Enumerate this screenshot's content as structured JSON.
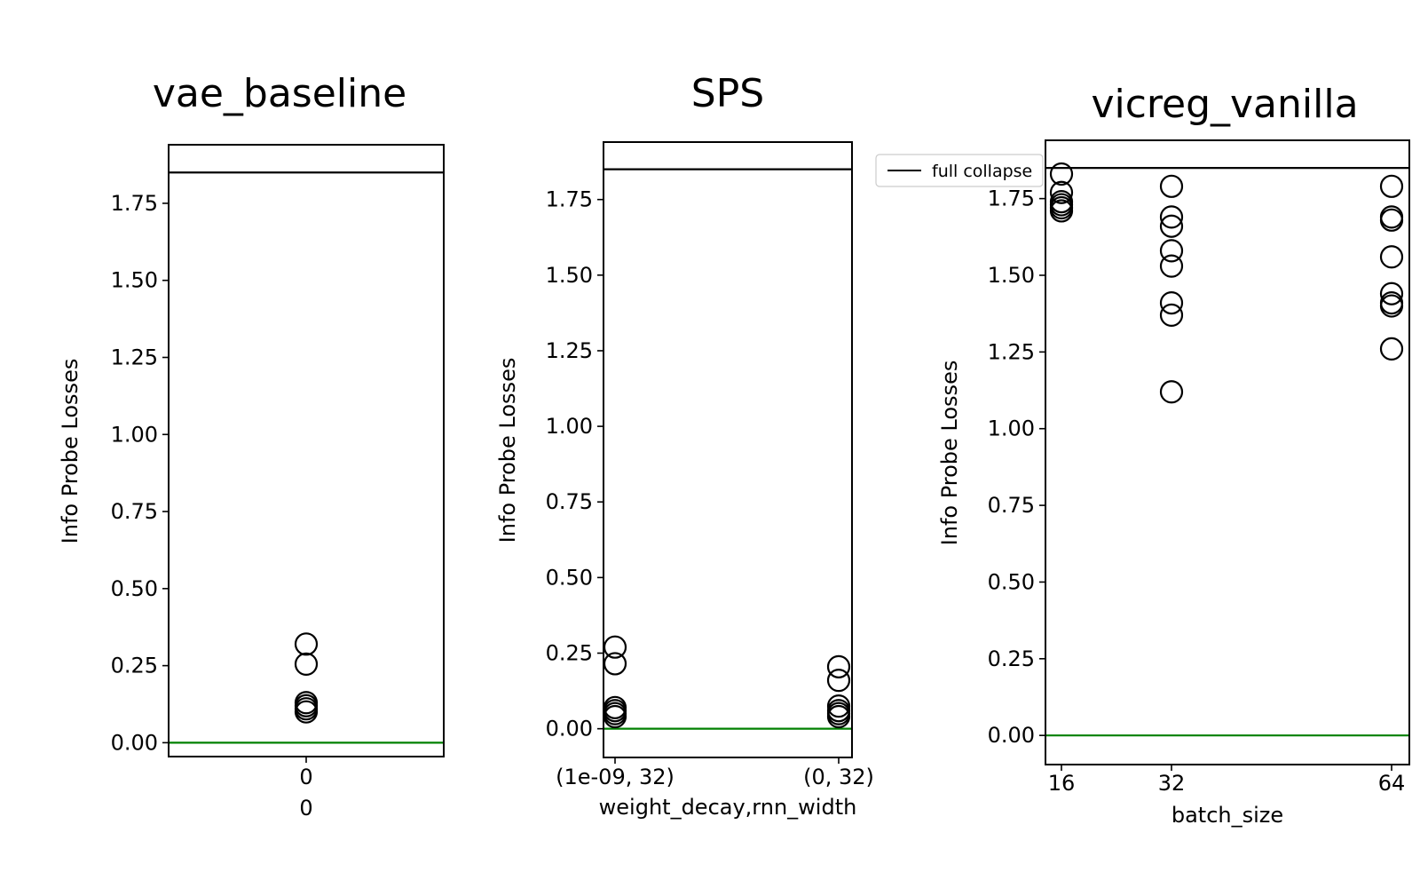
{
  "chart_data": [
    {
      "type": "scatter",
      "title": "vae_baseline",
      "xlabel": "0",
      "ylabel": "Info Probe Losses",
      "categories": [
        "0"
      ],
      "ylim": [
        -0.045,
        1.94
      ],
      "yticks": [
        "0.00",
        "0.25",
        "0.50",
        "0.75",
        "1.00",
        "1.25",
        "1.50",
        "1.75"
      ],
      "grid": false,
      "reference_lines": [
        {
          "y": 1.85,
          "color": "#000000"
        },
        {
          "y": 0.0,
          "color": "#008000"
        }
      ],
      "points": [
        {
          "x": "0",
          "y": 0.32
        },
        {
          "x": "0",
          "y": 0.255
        },
        {
          "x": "0",
          "y": 0.13
        },
        {
          "x": "0",
          "y": 0.12
        },
        {
          "x": "0",
          "y": 0.11
        },
        {
          "x": "0",
          "y": 0.1
        }
      ]
    },
    {
      "type": "scatter",
      "title": "SPS",
      "xlabel": "weight_decay,rnn_width",
      "ylabel": "Info Probe Losses",
      "categories": [
        "(1e-09, 32)",
        "(0, 32)"
      ],
      "ylim": [
        -0.095,
        1.94
      ],
      "yticks": [
        "0.00",
        "0.25",
        "0.50",
        "0.75",
        "1.00",
        "1.25",
        "1.50",
        "1.75"
      ],
      "grid": false,
      "reference_lines": [
        {
          "y": 1.85,
          "color": "#000000"
        },
        {
          "y": 0.0,
          "color": "#008000"
        }
      ],
      "points": [
        {
          "x": "(1e-09, 32)",
          "y": 0.27
        },
        {
          "x": "(1e-09, 32)",
          "y": 0.215
        },
        {
          "x": "(1e-09, 32)",
          "y": 0.07
        },
        {
          "x": "(1e-09, 32)",
          "y": 0.06
        },
        {
          "x": "(1e-09, 32)",
          "y": 0.05
        },
        {
          "x": "(1e-09, 32)",
          "y": 0.04
        },
        {
          "x": "(0, 32)",
          "y": 0.205
        },
        {
          "x": "(0, 32)",
          "y": 0.16
        },
        {
          "x": "(0, 32)",
          "y": 0.075
        },
        {
          "x": "(0, 32)",
          "y": 0.06
        },
        {
          "x": "(0, 32)",
          "y": 0.05
        },
        {
          "x": "(0, 32)",
          "y": 0.04
        }
      ]
    },
    {
      "type": "scatter",
      "title": "vicreg_vanilla",
      "xlabel": "batch_size",
      "ylabel": "Info Probe Losses",
      "categories": [
        "16",
        "32",
        "64"
      ],
      "ylim": [
        -0.095,
        1.94
      ],
      "yticks": [
        "0.00",
        "0.25",
        "0.50",
        "0.75",
        "1.00",
        "1.25",
        "1.50",
        "1.75"
      ],
      "grid": false,
      "legend": {
        "position": "top-left",
        "entries": [
          "full collapse"
        ]
      },
      "reference_lines": [
        {
          "y": 1.85,
          "color": "#000000",
          "label": "full collapse"
        },
        {
          "y": 0.0,
          "color": "#008000"
        }
      ],
      "points": [
        {
          "x": "16",
          "y": 1.83
        },
        {
          "x": "16",
          "y": 1.77
        },
        {
          "x": "16",
          "y": 1.74
        },
        {
          "x": "16",
          "y": 1.73
        },
        {
          "x": "16",
          "y": 1.72
        },
        {
          "x": "16",
          "y": 1.71
        },
        {
          "x": "32",
          "y": 1.79
        },
        {
          "x": "32",
          "y": 1.69
        },
        {
          "x": "32",
          "y": 1.66
        },
        {
          "x": "32",
          "y": 1.58
        },
        {
          "x": "32",
          "y": 1.53
        },
        {
          "x": "32",
          "y": 1.41
        },
        {
          "x": "32",
          "y": 1.37
        },
        {
          "x": "32",
          "y": 1.12
        },
        {
          "x": "64",
          "y": 1.79
        },
        {
          "x": "64",
          "y": 1.69
        },
        {
          "x": "64",
          "y": 1.68
        },
        {
          "x": "64",
          "y": 1.56
        },
        {
          "x": "64",
          "y": 1.44
        },
        {
          "x": "64",
          "y": 1.41
        },
        {
          "x": "64",
          "y": 1.4
        },
        {
          "x": "64",
          "y": 1.26
        }
      ]
    }
  ]
}
